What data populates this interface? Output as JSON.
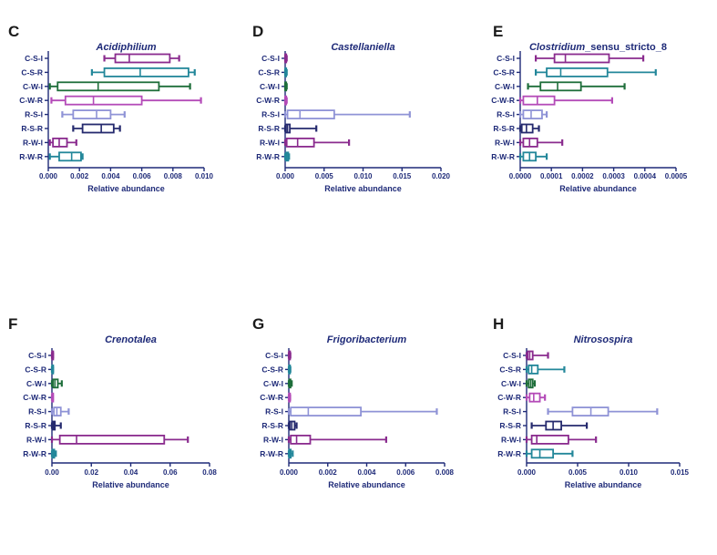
{
  "figure": {
    "category_colors": [
      "#8a2b8e",
      "#23879a",
      "#1e6e3a",
      "#b44bb8",
      "#8f93d6",
      "#252a6e",
      "#8a2b8e",
      "#23879a"
    ]
  },
  "chart_data": [
    {
      "type": "box",
      "panel": "C",
      "title": "Acidiphilium",
      "xlabel": "Relative abundance",
      "xlim": [
        0,
        0.01
      ],
      "xticks": [
        0.0,
        0.002,
        0.004,
        0.006,
        0.008,
        0.01
      ],
      "xtick_labels": [
        "0.000",
        "0.002",
        "0.004",
        "0.006",
        "0.008",
        "0.010"
      ],
      "categories": [
        "C-S-I",
        "C-S-R",
        "C-W-I",
        "C-W-R",
        "R-S-I",
        "R-S-R",
        "R-W-I",
        "R-W-R"
      ],
      "boxes": [
        {
          "min": 0.0036,
          "q1": 0.0043,
          "median": 0.0052,
          "q3": 0.0078,
          "max": 0.0084
        },
        {
          "min": 0.0028,
          "q1": 0.0036,
          "median": 0.0059,
          "q3": 0.009,
          "max": 0.0094
        },
        {
          "min": 0.0001,
          "q1": 0.0006,
          "median": 0.0032,
          "q3": 0.0071,
          "max": 0.0091
        },
        {
          "min": 0.0002,
          "q1": 0.0011,
          "median": 0.0029,
          "q3": 0.006,
          "max": 0.0098
        },
        {
          "min": 0.0009,
          "q1": 0.0016,
          "median": 0.0031,
          "q3": 0.004,
          "max": 0.0049
        },
        {
          "min": 0.0016,
          "q1": 0.0022,
          "median": 0.0034,
          "q3": 0.0042,
          "max": 0.0046
        },
        {
          "min": 0.0001,
          "q1": 0.0003,
          "median": 0.0007,
          "q3": 0.0012,
          "max": 0.0018
        },
        {
          "min": 0.0001,
          "q1": 0.0007,
          "median": 0.0015,
          "q3": 0.0021,
          "max": 0.0022
        }
      ]
    },
    {
      "type": "box",
      "panel": "D",
      "title": "Castellaniella",
      "xlabel": "Relative abundance",
      "xlim": [
        0,
        0.02
      ],
      "xticks": [
        0.0,
        0.005,
        0.01,
        0.015,
        0.02
      ],
      "xtick_labels": [
        "0.000",
        "0.005",
        "0.010",
        "0.015",
        "0.020"
      ],
      "categories": [
        "C-S-I",
        "C-S-R",
        "C-W-I",
        "C-W-R",
        "R-S-I",
        "R-S-R",
        "R-W-I",
        "R-W-R"
      ],
      "boxes": [
        {
          "min": 0.0,
          "q1": 0.0,
          "median": 0.0001,
          "q3": 0.0001,
          "max": 0.0002
        },
        {
          "min": 0.0,
          "q1": 0.0,
          "median": 0.0001,
          "q3": 0.0001,
          "max": 0.0002
        },
        {
          "min": 0.0,
          "q1": 0.0,
          "median": 0.0001,
          "q3": 0.0001,
          "max": 0.0002
        },
        {
          "min": 0.0,
          "q1": 0.0,
          "median": 0.0001,
          "q3": 0.0001,
          "max": 0.0002
        },
        {
          "min": 0.0,
          "q1": 0.0003,
          "median": 0.0019,
          "q3": 0.0063,
          "max": 0.016
        },
        {
          "min": 0.0,
          "q1": 0.0001,
          "median": 0.0003,
          "q3": 0.0006,
          "max": 0.004
        },
        {
          "min": 0.0,
          "q1": 0.0002,
          "median": 0.0016,
          "q3": 0.0037,
          "max": 0.0082
        },
        {
          "min": 0.0,
          "q1": 0.0001,
          "median": 0.0002,
          "q3": 0.0004,
          "max": 0.0005
        }
      ]
    },
    {
      "type": "box",
      "panel": "E",
      "title": "Clostridium_sensu_stricto_8",
      "title_italic_part": "Clostridium",
      "title_rest": "_sensu_stricto_8",
      "xlabel": "Relative abundance",
      "xlim": [
        0,
        0.0005
      ],
      "xticks": [
        0.0,
        0.0001,
        0.0002,
        0.0003,
        0.0004,
        0.0005
      ],
      "xtick_labels": [
        "0.0000",
        "0.0001",
        "0.0002",
        "0.0003",
        "0.0004",
        "0.0005"
      ],
      "categories": [
        "C-S-I",
        "C-S-R",
        "C-W-I",
        "C-W-R",
        "R-S-I",
        "R-S-R",
        "R-W-I",
        "R-W-R"
      ],
      "boxes": [
        {
          "min": 5e-05,
          "q1": 0.00011,
          "median": 0.000145,
          "q3": 0.000285,
          "max": 0.000395
        },
        {
          "min": 5e-05,
          "q1": 8.5e-05,
          "median": 0.00013,
          "q3": 0.00028,
          "max": 0.000435
        },
        {
          "min": 2.5e-05,
          "q1": 6.5e-05,
          "median": 0.00012,
          "q3": 0.000195,
          "max": 0.000335
        },
        {
          "min": 0.0,
          "q1": 1e-05,
          "median": 5.5e-05,
          "q3": 0.00011,
          "max": 0.000295
        },
        {
          "min": 0.0,
          "q1": 1e-05,
          "median": 3.5e-05,
          "q3": 7e-05,
          "max": 8.5e-05
        },
        {
          "min": 0.0,
          "q1": 5e-06,
          "median": 2e-05,
          "q3": 4e-05,
          "max": 6e-05
        },
        {
          "min": 0.0,
          "q1": 1e-05,
          "median": 3e-05,
          "q3": 5.5e-05,
          "max": 0.000135
        },
        {
          "min": 0.0,
          "q1": 1e-05,
          "median": 3e-05,
          "q3": 5e-05,
          "max": 8.5e-05
        }
      ]
    },
    {
      "type": "box",
      "panel": "F",
      "title": "Crenotalea",
      "xlabel": "Relative abundance",
      "xlim": [
        0,
        0.08
      ],
      "xticks": [
        0.0,
        0.02,
        0.04,
        0.06,
        0.08
      ],
      "xtick_labels": [
        "0.00",
        "0.02",
        "0.04",
        "0.06",
        "0.08"
      ],
      "categories": [
        "C-S-I",
        "C-S-R",
        "C-W-I",
        "C-W-R",
        "R-S-I",
        "R-S-R",
        "R-W-I",
        "R-W-R"
      ],
      "boxes": [
        {
          "min": 0.0,
          "q1": 0.0001,
          "median": 0.0002,
          "q3": 0.0004,
          "max": 0.0006
        },
        {
          "min": 0.0,
          "q1": 0.0001,
          "median": 0.0002,
          "q3": 0.0004,
          "max": 0.0006
        },
        {
          "min": 0.0,
          "q1": 0.0005,
          "median": 0.0015,
          "q3": 0.003,
          "max": 0.005
        },
        {
          "min": 0.0,
          "q1": 0.0001,
          "median": 0.0002,
          "q3": 0.0003,
          "max": 0.0005
        },
        {
          "min": 0.0,
          "q1": 0.001,
          "median": 0.0025,
          "q3": 0.0045,
          "max": 0.0085
        },
        {
          "min": 0.0,
          "q1": 0.0003,
          "median": 0.0008,
          "q3": 0.0015,
          "max": 0.0045
        },
        {
          "min": 0.0,
          "q1": 0.004,
          "median": 0.0125,
          "q3": 0.057,
          "max": 0.069
        },
        {
          "min": 0.0,
          "q1": 0.0002,
          "median": 0.0006,
          "q3": 0.0012,
          "max": 0.002
        }
      ]
    },
    {
      "type": "box",
      "panel": "G",
      "title": "Frigoribacterium",
      "xlabel": "Relative abundance",
      "xlim": [
        0,
        0.008
      ],
      "xticks": [
        0.0,
        0.002,
        0.004,
        0.006,
        0.008
      ],
      "xtick_labels": [
        "0.000",
        "0.002",
        "0.004",
        "0.006",
        "0.008"
      ],
      "categories": [
        "C-S-I",
        "C-S-R",
        "C-W-I",
        "C-W-R",
        "R-S-I",
        "R-S-R",
        "R-W-I",
        "R-W-R"
      ],
      "boxes": [
        {
          "min": 0.0,
          "q1": 1e-05,
          "median": 3e-05,
          "q3": 5e-05,
          "max": 8e-05
        },
        {
          "min": 0.0,
          "q1": 1e-05,
          "median": 3e-05,
          "q3": 5e-05,
          "max": 8e-05
        },
        {
          "min": 0.0,
          "q1": 2e-05,
          "median": 5e-05,
          "q3": 9e-05,
          "max": 0.00015
        },
        {
          "min": 0.0,
          "q1": 1e-05,
          "median": 2e-05,
          "q3": 4e-05,
          "max": 7e-05
        },
        {
          "min": 0.0,
          "q1": 0.0001,
          "median": 0.001,
          "q3": 0.0037,
          "max": 0.0076
        },
        {
          "min": 0.0,
          "q1": 5e-05,
          "median": 0.00015,
          "q3": 0.0003,
          "max": 0.0004
        },
        {
          "min": 0.0,
          "q1": 0.0001,
          "median": 0.0004,
          "q3": 0.0011,
          "max": 0.005
        },
        {
          "min": 0.0,
          "q1": 2e-05,
          "median": 5e-05,
          "q3": 0.0001,
          "max": 0.0002
        }
      ]
    },
    {
      "type": "box",
      "panel": "H",
      "title": "Nitrosospira",
      "xlabel": "Relative abundance",
      "xlim": [
        0,
        0.015
      ],
      "xticks": [
        0.0,
        0.005,
        0.01,
        0.015
      ],
      "xtick_labels": [
        "0.000",
        "0.005",
        "0.010",
        "0.015"
      ],
      "categories": [
        "C-S-I",
        "C-S-R",
        "C-W-I",
        "C-W-R",
        "R-S-I",
        "R-S-R",
        "R-W-I",
        "R-W-R"
      ],
      "boxes": [
        {
          "min": 0.0,
          "q1": 0.0001,
          "median": 0.0003,
          "q3": 0.0006,
          "max": 0.0021
        },
        {
          "min": 0.0,
          "q1": 0.0002,
          "median": 0.0005,
          "q3": 0.0011,
          "max": 0.0037
        },
        {
          "min": 0.0,
          "q1": 0.0002,
          "median": 0.0004,
          "q3": 0.0006,
          "max": 0.0008
        },
        {
          "min": 0.0,
          "q1": 0.0003,
          "median": 0.0007,
          "q3": 0.0013,
          "max": 0.0018
        },
        {
          "min": 0.0021,
          "q1": 0.0045,
          "median": 0.0063,
          "q3": 0.008,
          "max": 0.0128
        },
        {
          "min": 0.0005,
          "q1": 0.0019,
          "median": 0.0026,
          "q3": 0.0034,
          "max": 0.0059
        },
        {
          "min": 0.0,
          "q1": 0.0005,
          "median": 0.001,
          "q3": 0.0041,
          "max": 0.0068
        },
        {
          "min": 0.0,
          "q1": 0.0005,
          "median": 0.0013,
          "q3": 0.0026,
          "max": 0.0045
        }
      ]
    }
  ]
}
